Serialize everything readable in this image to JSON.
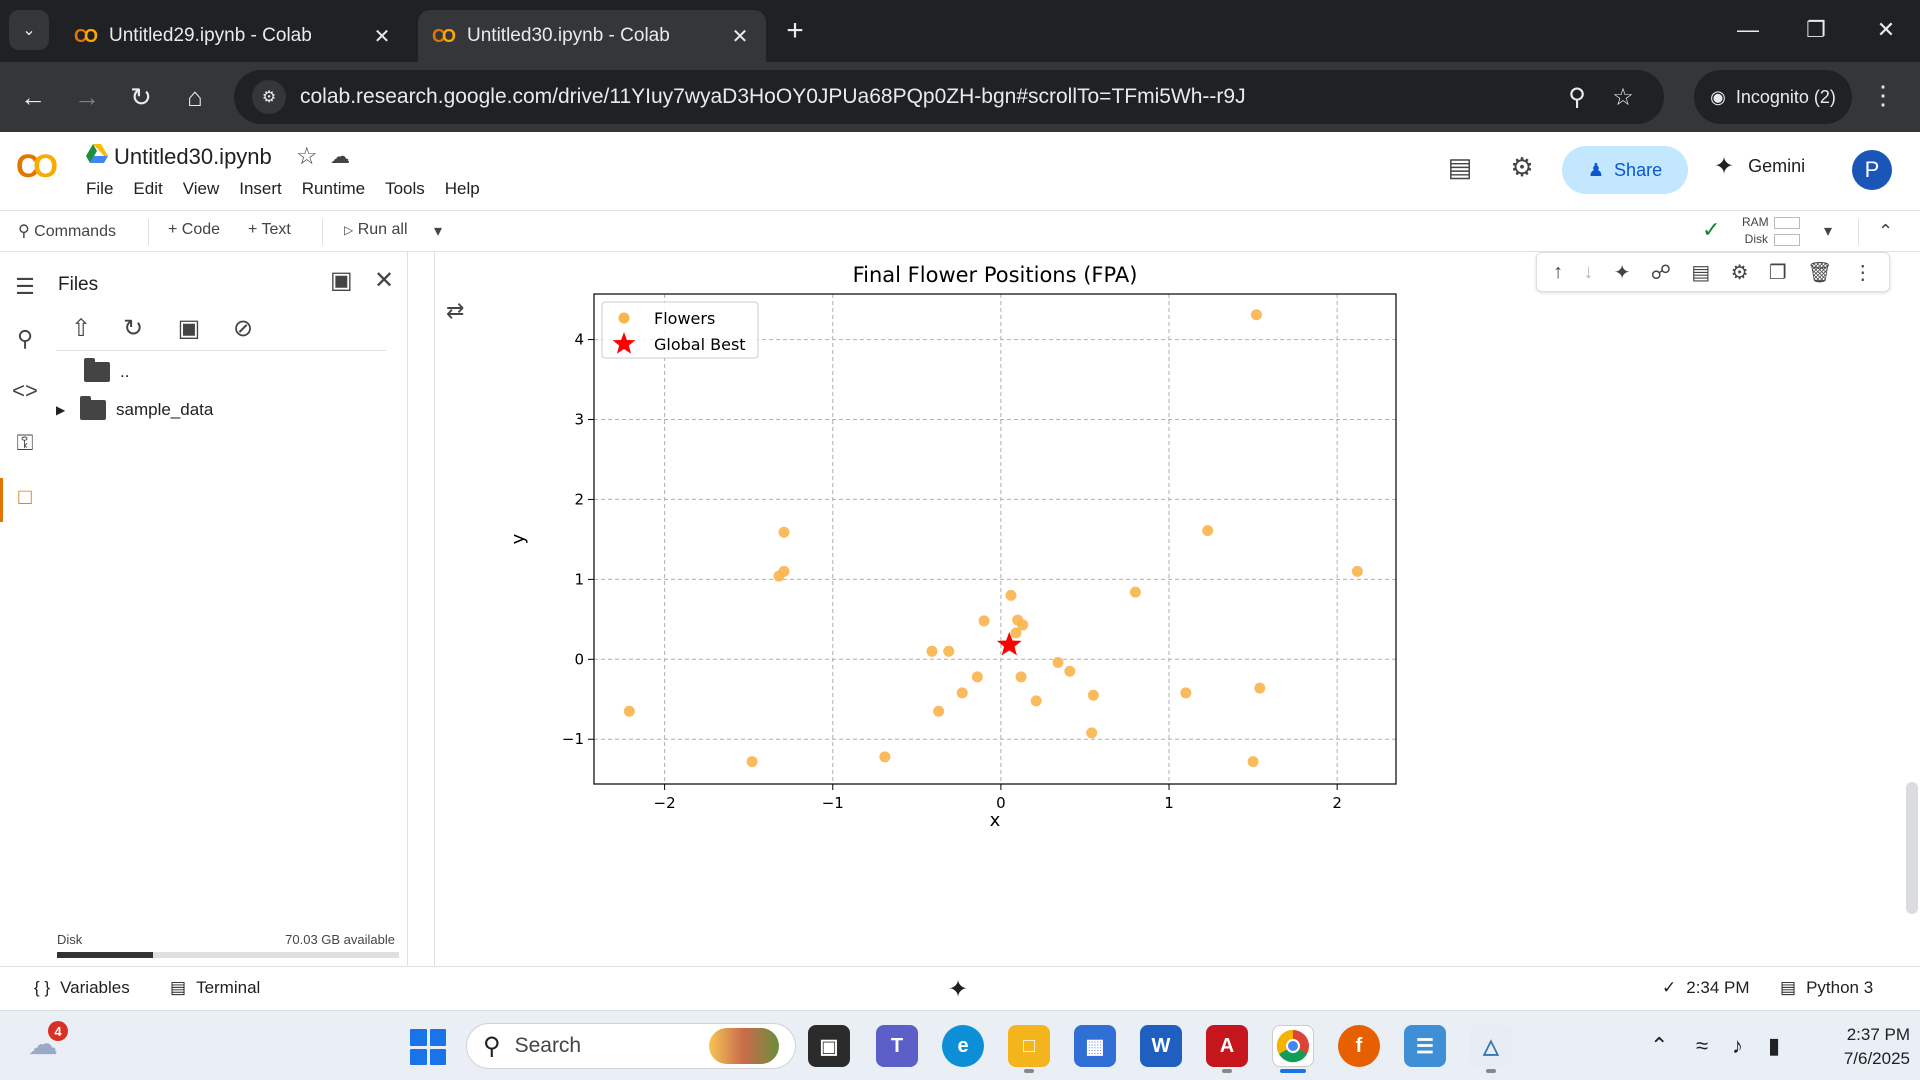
{
  "browser": {
    "tabs": [
      {
        "title": "Untitled29.ipynb - Colab",
        "active": false
      },
      {
        "title": "Untitled30.ipynb - Colab",
        "active": true
      }
    ],
    "url": "colab.research.google.com/drive/11YIuy7wyaD3HoOY0JPUa68PQp0ZH-bgn#scrollTo=TFmi5Wh--r9J",
    "incognito_label": "Incognito (2)"
  },
  "colab": {
    "notebook_title": "Untitled30.ipynb",
    "menu": [
      "File",
      "Edit",
      "View",
      "Insert",
      "Runtime",
      "Tools",
      "Help"
    ],
    "share_label": "Share",
    "gemini_label": "Gemini",
    "avatar_letter": "P",
    "toolbar": {
      "commands": "Commands",
      "code": "+ Code",
      "text": "+ Text",
      "run_all": "Run all",
      "ram": "RAM",
      "disk": "Disk"
    },
    "files_panel": {
      "title": "Files",
      "parent_dir": "..",
      "folder": "sample_data",
      "disk_label": "Disk",
      "disk_available": "70.03 GB available",
      "disk_used_fraction": 0.28
    },
    "statusbar": {
      "variables": "Variables",
      "terminal": "Terminal",
      "exec_time": "2:34 PM",
      "runtime": "Python 3"
    }
  },
  "chart_data": {
    "type": "scatter",
    "title": "Final Flower Positions (FPA)",
    "xlabel": "x",
    "ylabel": "y",
    "xlim": [
      -2.42,
      2.35
    ],
    "ylim": [
      -1.56,
      4.57
    ],
    "xticks": [
      -2,
      -1,
      0,
      1,
      2
    ],
    "yticks": [
      -1,
      0,
      1,
      2,
      3,
      4
    ],
    "xtick_labels": [
      "−2",
      "−1",
      "0",
      "1",
      "2"
    ],
    "ytick_labels": [
      "−1",
      "0",
      "1",
      "2",
      "3",
      "4"
    ],
    "grid": true,
    "legend_position": "upper-left",
    "series": [
      {
        "name": "Flowers",
        "color": "#f9b44a",
        "marker": "circle",
        "points": [
          [
            1.52,
            4.31
          ],
          [
            1.23,
            1.61
          ],
          [
            2.12,
            1.1
          ],
          [
            0.8,
            0.84
          ],
          [
            -1.29,
            1.59
          ],
          [
            -1.29,
            1.1
          ],
          [
            -1.32,
            1.04
          ],
          [
            0.06,
            0.8
          ],
          [
            -0.1,
            0.48
          ],
          [
            0.1,
            0.49
          ],
          [
            0.13,
            0.43
          ],
          [
            0.09,
            0.33
          ],
          [
            -0.41,
            0.1
          ],
          [
            -0.31,
            0.1
          ],
          [
            0.34,
            -0.04
          ],
          [
            0.41,
            -0.15
          ],
          [
            -0.14,
            -0.22
          ],
          [
            0.12,
            -0.22
          ],
          [
            -0.23,
            -0.42
          ],
          [
            0.55,
            -0.45
          ],
          [
            0.21,
            -0.52
          ],
          [
            -0.37,
            -0.65
          ],
          [
            0.54,
            -0.92
          ],
          [
            -0.69,
            -1.22
          ],
          [
            -1.48,
            -1.28
          ],
          [
            1.1,
            -0.42
          ],
          [
            1.54,
            -0.36
          ],
          [
            1.5,
            -1.28
          ],
          [
            -2.21,
            -0.65
          ]
        ]
      },
      {
        "name": "Global Best",
        "color": "#ff0000",
        "marker": "star",
        "points": [
          [
            0.05,
            0.18
          ]
        ]
      }
    ]
  },
  "taskbar": {
    "notification_count": "4",
    "search_placeholder": "Search",
    "time": "2:37 PM",
    "date": "7/6/2025"
  }
}
